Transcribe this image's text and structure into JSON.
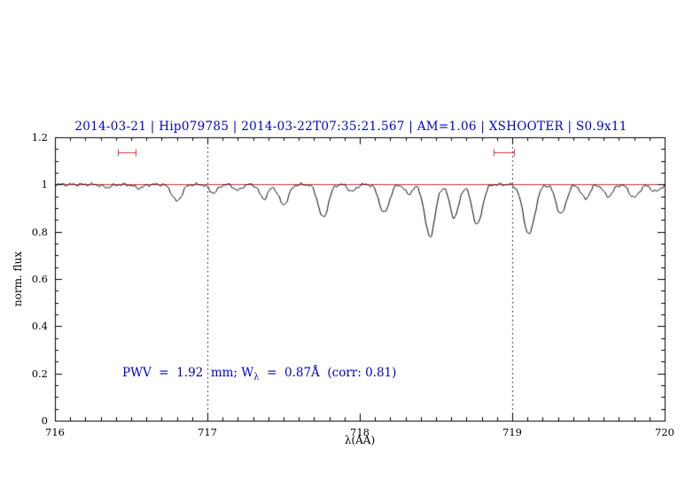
{
  "title": "2014-03-21 | Hip079785 | 2014-03-22T07:35:21.567 | AM=1.06 | XSHOOTER | S0.9x11",
  "colors": {
    "title": "#0000cd",
    "annotation": "#0000cd",
    "continuum": "#cc3333",
    "marker": "#cc3333",
    "spectrum": "#000000",
    "axes": "#000000",
    "guides": "#000000",
    "background": "#ffffff"
  },
  "axes": {
    "xlabel": "λ(AA)",
    "ylabel": "norm. flux",
    "x_ticks": [
      "716",
      "717",
      "718",
      "719",
      "720"
    ],
    "y_ticks": [
      "0",
      "0.2",
      "0.4",
      "0.6",
      "0.8",
      "1",
      "1.2"
    ]
  },
  "annotation": {
    "pre": "PWV  =  1.92  mm; W",
    "sub": "λ",
    "post": "  =  0.87Å  (corr: 0.81)"
  },
  "chart_data": {
    "type": "line",
    "title": "2014-03-21 | Hip079785 | 2014-03-22T07:35:21.567 | AM=1.06 | XSHOOTER | S0.9x11",
    "xlabel": "λ(AA)",
    "ylabel": "norm. flux",
    "xlim": [
      716,
      720
    ],
    "ylim": [
      0,
      1.2
    ],
    "x_tick_values": [
      716,
      717,
      718,
      719,
      720
    ],
    "y_tick_values": [
      0,
      0.2,
      0.4,
      0.6,
      0.8,
      1.0,
      1.2
    ],
    "x_minor_tick_step": 0.1,
    "y_minor_tick_step": 0.05,
    "grid": false,
    "continuum_level": 1.0,
    "dotted_guides_x": [
      717,
      719
    ],
    "range_markers": [
      {
        "x_start": 716.41,
        "x_end": 716.53,
        "y": 1.135
      },
      {
        "x_start": 718.88,
        "x_end": 719.01,
        "y": 1.135
      }
    ],
    "annotation_text": "PWV = 1.92 mm; W_λ = 0.87Å (corr: 0.81)",
    "pwv_mm": 1.92,
    "equivalent_width_A": 0.87,
    "correlation": 0.81,
    "absorption_lines": [
      {
        "center": 716.34,
        "depth": 0.012,
        "sigma": 0.03
      },
      {
        "center": 716.55,
        "depth": 0.015,
        "sigma": 0.03
      },
      {
        "center": 716.8,
        "depth": 0.07,
        "sigma": 0.032
      },
      {
        "center": 717.04,
        "depth": 0.035,
        "sigma": 0.028
      },
      {
        "center": 717.2,
        "depth": 0.025,
        "sigma": 0.025
      },
      {
        "center": 717.37,
        "depth": 0.06,
        "sigma": 0.028
      },
      {
        "center": 717.5,
        "depth": 0.085,
        "sigma": 0.032
      },
      {
        "center": 717.76,
        "depth": 0.14,
        "sigma": 0.033
      },
      {
        "center": 717.95,
        "depth": 0.03,
        "sigma": 0.025
      },
      {
        "center": 718.16,
        "depth": 0.12,
        "sigma": 0.033
      },
      {
        "center": 718.32,
        "depth": 0.04,
        "sigma": 0.025
      },
      {
        "center": 718.46,
        "depth": 0.22,
        "sigma": 0.034
      },
      {
        "center": 718.62,
        "depth": 0.14,
        "sigma": 0.03
      },
      {
        "center": 718.77,
        "depth": 0.17,
        "sigma": 0.033
      },
      {
        "center": 719.11,
        "depth": 0.21,
        "sigma": 0.038
      },
      {
        "center": 719.32,
        "depth": 0.125,
        "sigma": 0.033
      },
      {
        "center": 719.48,
        "depth": 0.06,
        "sigma": 0.028
      },
      {
        "center": 719.63,
        "depth": 0.05,
        "sigma": 0.03
      },
      {
        "center": 719.8,
        "depth": 0.055,
        "sigma": 0.032
      },
      {
        "center": 719.94,
        "depth": 0.03,
        "sigma": 0.03
      }
    ],
    "noise_amplitude": 0.004,
    "sample_step": 0.004
  }
}
